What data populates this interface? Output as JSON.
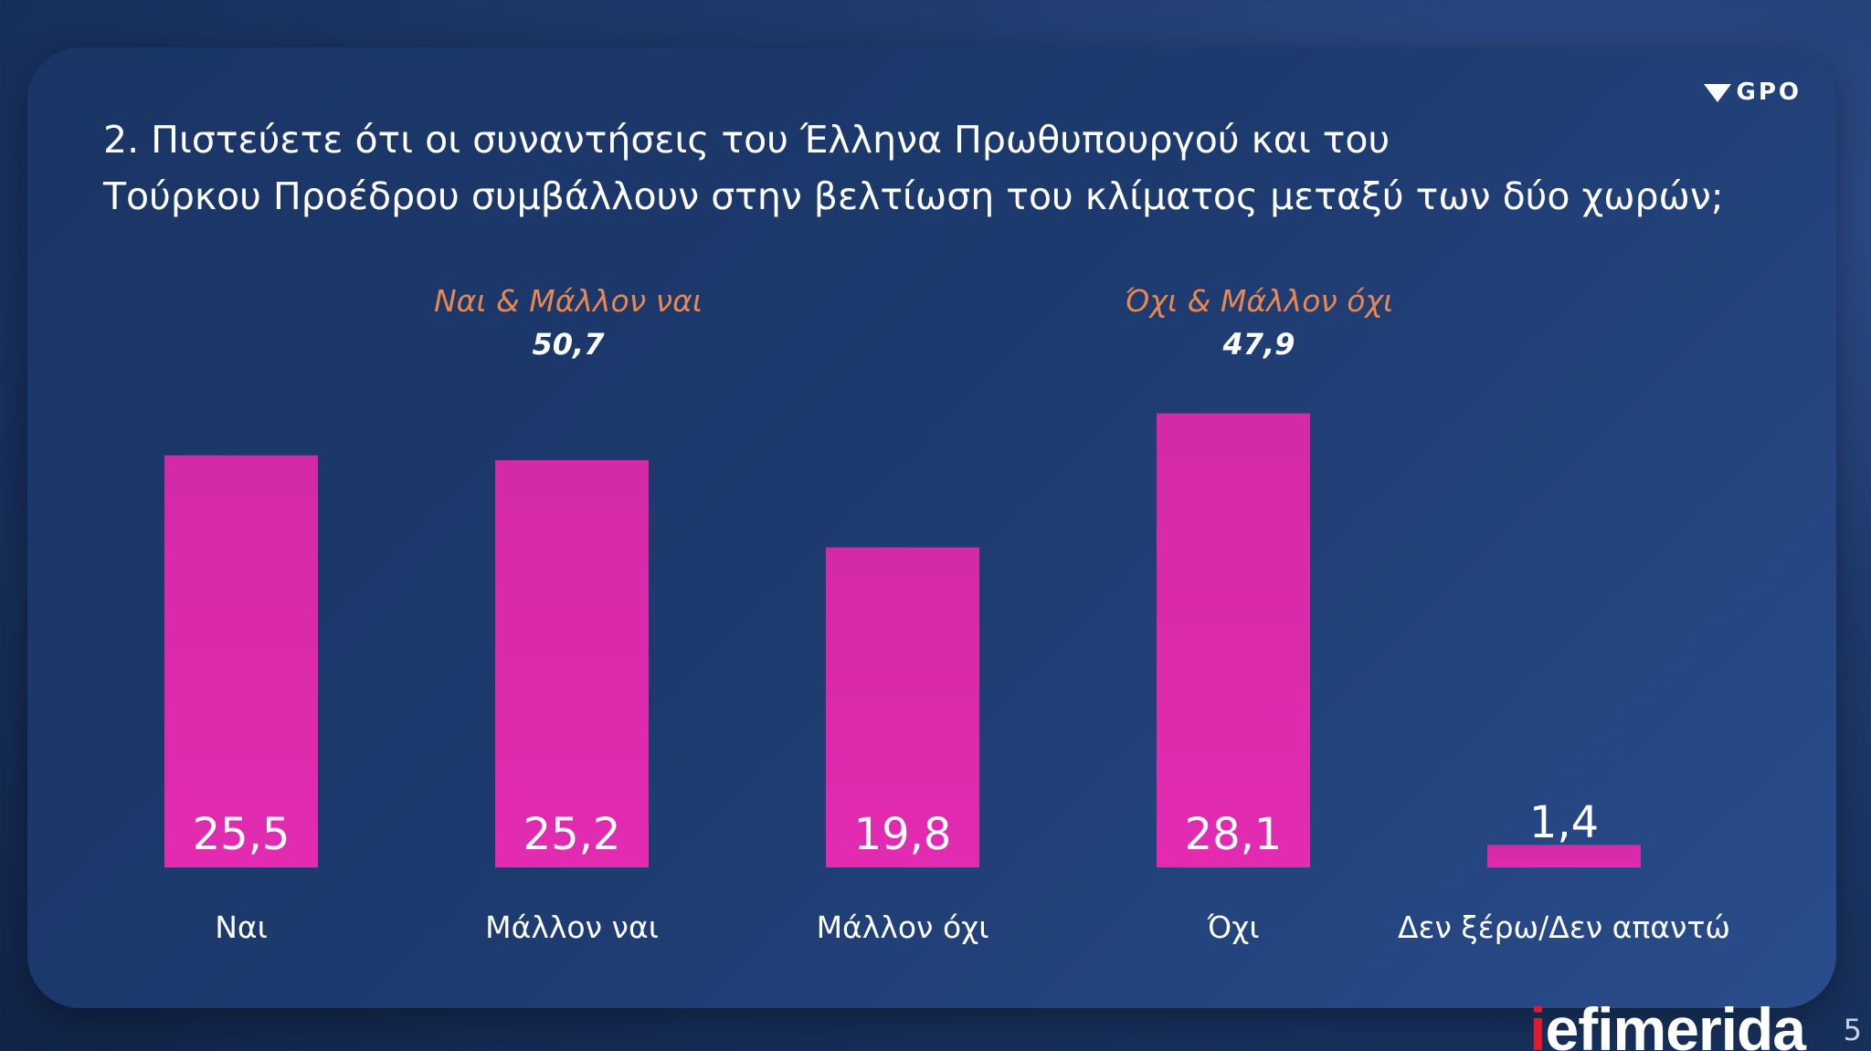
{
  "logo": {
    "text": "GPO",
    "icon": "gpo-heart-icon"
  },
  "question": {
    "line1": "2. Πιστεύετε ότι οι συναντήσεις του Έλληνα Πρωθυπουργού και του",
    "line2": "Τούρκου Προέδρου συμβάλλουν στην βελτίωση του κλίματος μεταξύ των δύο χωρών;"
  },
  "groups": [
    {
      "label": "Ναι & Μάλλον ναι",
      "value": "50,7"
    },
    {
      "label": "Όχι & Μάλλον όχι",
      "value": "47,9"
    }
  ],
  "chart_data": {
    "type": "bar",
    "title": "2. Πιστεύετε ότι οι συναντήσεις του Έλληνα Πρωθυπουργού και του Τούρκου Προέδρου συμβάλλουν στην βελτίωση του κλίματος μεταξύ των δύο χωρών;",
    "categories": [
      "Ναι",
      "Μάλλον ναι",
      "Μάλλον όχι",
      "Όχι",
      "Δεν ξέρω/Δεν απαντώ"
    ],
    "values": [
      25.5,
      25.2,
      19.8,
      28.1,
      1.4
    ],
    "value_labels": [
      "25,5",
      "25,2",
      "19,8",
      "28,1",
      "1,4"
    ],
    "xlabel": "",
    "ylabel": "",
    "grid": false,
    "bar_color": "#d42aa7",
    "bar_color_bottom": "#e22bb1",
    "group_label_color": "#e8874f"
  },
  "footer": {
    "brand_prefix": "i",
    "brand_rest": "efimerida",
    "page": "5"
  }
}
